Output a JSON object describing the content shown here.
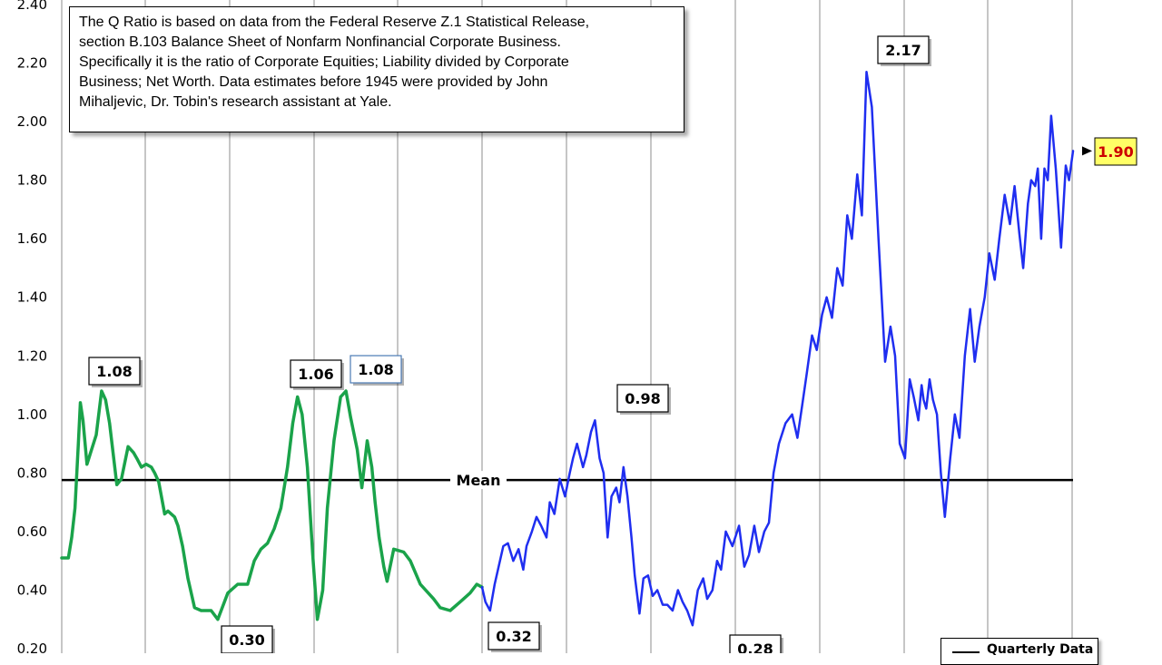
{
  "chart_data": {
    "type": "line",
    "title": "",
    "xlabel": "",
    "ylabel": "",
    "ylim": [
      0.2,
      2.4
    ],
    "y_ticks": [
      "0.20",
      "0.40",
      "0.60",
      "0.80",
      "1.00",
      "1.20",
      "1.40",
      "1.60",
      "1.80",
      "2.00",
      "2.20",
      "2.40"
    ],
    "grid": "vertical",
    "mean_label": "Mean",
    "mean_value": 0.776,
    "note_lines": [
      "The Q Ratio is based on data from the Federal Reserve Z.1 Statistical Release,",
      "section B.103  Balance Sheet of Nonfarm Nonfinancial Corporate Business.",
      "Specifically it is the ratio  of Corporate Equities; Liability divided by Corporate",
      "Business; Net Worth.  Data estimates before 1945 were provided by John",
      "Mihaljevic, Dr. Tobin's research assistant at Yale."
    ],
    "legend": {
      "placement": "bottom-right",
      "label": "Quarterly Data"
    },
    "annotations": [
      {
        "label": "1.08",
        "t": 0.083,
        "value": 1.08
      },
      {
        "label": "0.30",
        "t": 0.298,
        "value": 0.3
      },
      {
        "label": "1.06",
        "t": 0.393,
        "value": 1.06
      },
      {
        "label": "1.08",
        "t": 0.452,
        "value": 1.08
      },
      {
        "label": "0.32",
        "t": 0.643,
        "value": 0.32
      },
      {
        "label": "0.98",
        "t": 0.803,
        "value": 0.98
      },
      {
        "label": "0.28",
        "t": 0.991,
        "value": 0.28
      },
      {
        "label": "2.17",
        "t": 1.298,
        "value": 2.17
      },
      {
        "label": "1.90",
        "t": 1.523,
        "value": 1.9
      }
    ],
    "series": [
      {
        "color": "#1aa34a",
        "x": [
          0,
          0.01,
          0.015,
          0.02,
          0.025,
          0.028,
          0.032,
          0.038,
          0.045,
          0.052,
          0.06,
          0.066,
          0.072,
          0.083,
          0.09,
          0.1,
          0.108,
          0.113,
          0.12,
          0.127,
          0.135,
          0.14,
          0.146,
          0.155,
          0.16,
          0.17,
          0.175,
          0.182,
          0.19,
          0.2,
          0.21,
          0.225,
          0.235,
          0.25,
          0.265,
          0.28,
          0.29,
          0.3,
          0.31,
          0.32,
          0.33,
          0.34,
          0.348,
          0.355,
          0.362,
          0.37,
          0.378,
          0.385,
          0.393,
          0.4,
          0.41,
          0.42,
          0.428,
          0.435,
          0.445,
          0.452,
          0.46,
          0.467,
          0.472,
          0.478,
          0.485,
          0.49,
          0.5,
          0.515,
          0.525,
          0.54,
          0.56,
          0.57,
          0.585,
          0.6,
          0.615,
          0.625,
          0.633
        ],
        "y": [
          0.51,
          0.51,
          0.58,
          0.68,
          0.9,
          1.04,
          0.98,
          0.83,
          0.88,
          0.93,
          1.08,
          1.05,
          0.97,
          0.76,
          0.78,
          0.89,
          0.87,
          0.85,
          0.82,
          0.83,
          0.82,
          0.8,
          0.77,
          0.66,
          0.67,
          0.65,
          0.62,
          0.55,
          0.44,
          0.34,
          0.33,
          0.33,
          0.3,
          0.39,
          0.42,
          0.42,
          0.5,
          0.54,
          0.56,
          0.61,
          0.68,
          0.82,
          0.97,
          1.06,
          1.0,
          0.82,
          0.52,
          0.3,
          0.4,
          0.68,
          0.91,
          1.06,
          1.08,
          0.99,
          0.88,
          0.75,
          0.91,
          0.82,
          0.7,
          0.58,
          0.48,
          0.43,
          0.54,
          0.53,
          0.5,
          0.42,
          0.37,
          0.34,
          0.33,
          0.36,
          0.39,
          0.42,
          0.41
        ]
      },
      {
        "color": "#1f2ef0",
        "x": [
          0.633,
          0.638,
          0.645,
          0.652,
          0.665,
          0.672,
          0.68,
          0.688,
          0.695,
          0.7,
          0.708,
          0.715,
          0.722,
          0.73,
          0.735,
          0.742,
          0.75,
          0.758,
          0.765,
          0.77,
          0.776,
          0.785,
          0.79,
          0.797,
          0.803,
          0.81,
          0.816,
          0.822,
          0.828,
          0.835,
          0.84,
          0.846,
          0.852,
          0.858,
          0.863,
          0.87,
          0.876,
          0.883,
          0.89,
          0.897,
          0.905,
          0.912,
          0.92,
          0.928,
          0.935,
          0.942,
          0.95,
          0.958,
          0.966,
          0.972,
          0.98,
          0.987,
          0.993,
          1.0,
          1.01,
          1.02,
          1.028,
          1.035,
          1.043,
          1.05,
          1.058,
          1.065,
          1.072,
          1.08,
          1.09,
          1.1,
          1.108,
          1.115,
          1.122,
          1.13,
          1.137,
          1.145,
          1.152,
          1.16,
          1.168,
          1.176,
          1.183,
          1.19,
          1.198,
          1.205,
          1.212,
          1.22,
          1.23,
          1.24,
          1.248,
          1.255,
          1.262,
          1.27,
          1.277,
          1.283,
          1.29,
          1.295,
          1.298,
          1.302,
          1.307,
          1.312,
          1.318,
          1.324,
          1.33,
          1.338,
          1.345,
          1.352,
          1.36,
          1.368,
          1.375,
          1.382,
          1.39,
          1.397,
          1.405,
          1.412,
          1.42,
          1.428,
          1.435,
          1.442,
          1.448,
          1.455,
          1.46,
          1.466,
          1.47,
          1.475,
          1.48,
          1.485,
          1.49,
          1.497,
          1.505,
          1.512,
          1.517,
          1.523
        ],
        "y": [
          0.41,
          0.36,
          0.33,
          0.42,
          0.55,
          0.56,
          0.5,
          0.54,
          0.47,
          0.55,
          0.6,
          0.65,
          0.62,
          0.58,
          0.7,
          0.66,
          0.78,
          0.72,
          0.8,
          0.85,
          0.9,
          0.82,
          0.86,
          0.94,
          0.98,
          0.85,
          0.8,
          0.58,
          0.72,
          0.75,
          0.7,
          0.82,
          0.72,
          0.58,
          0.45,
          0.32,
          0.44,
          0.45,
          0.38,
          0.4,
          0.35,
          0.35,
          0.33,
          0.4,
          0.36,
          0.33,
          0.28,
          0.4,
          0.44,
          0.37,
          0.4,
          0.5,
          0.47,
          0.6,
          0.55,
          0.62,
          0.48,
          0.52,
          0.62,
          0.53,
          0.6,
          0.63,
          0.8,
          0.9,
          0.97,
          1.0,
          0.92,
          1.03,
          1.14,
          1.27,
          1.22,
          1.34,
          1.4,
          1.33,
          1.5,
          1.44,
          1.68,
          1.6,
          1.82,
          1.68,
          2.17,
          2.05,
          1.6,
          1.18,
          1.3,
          1.2,
          0.9,
          0.85,
          1.12,
          1.06,
          0.98,
          1.1,
          1.05,
          1.02,
          1.12,
          1.05,
          1.0,
          0.8,
          0.65,
          0.85,
          1.0,
          0.92,
          1.2,
          1.36,
          1.18,
          1.3,
          1.4,
          1.55,
          1.46,
          1.6,
          1.75,
          1.65,
          1.78,
          1.62,
          1.5,
          1.72,
          1.8,
          1.78,
          1.84,
          1.6,
          1.84,
          1.8,
          2.02,
          1.84,
          1.57,
          1.85,
          1.8,
          1.9
        ]
      }
    ]
  }
}
